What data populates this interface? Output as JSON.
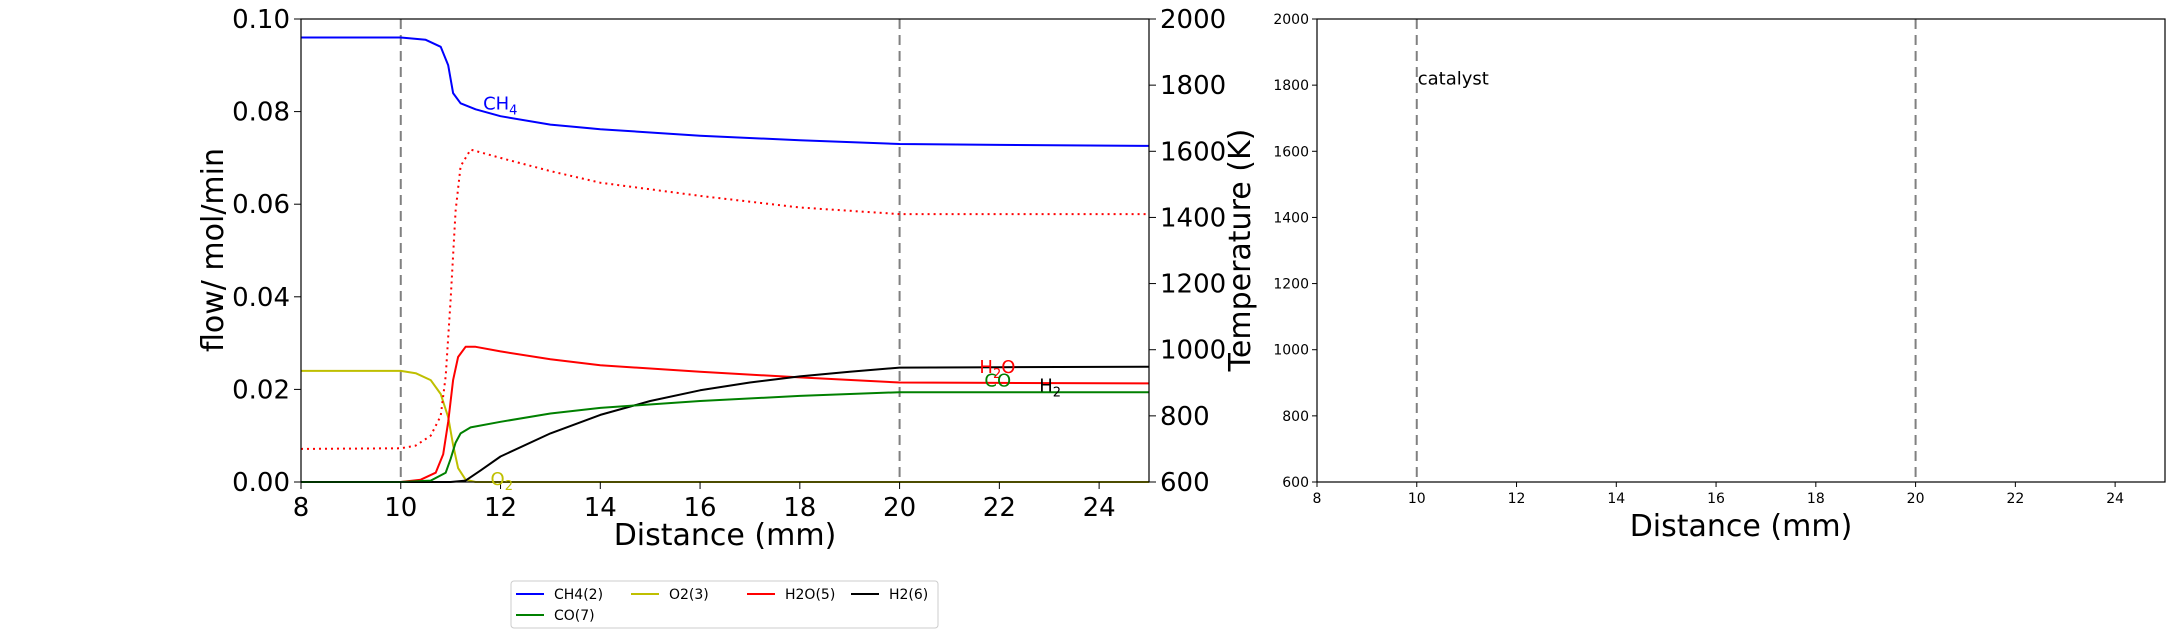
{
  "chart_data": [
    {
      "type": "line",
      "xlabel": "Distance (mm)",
      "ylabel": "flow/ mol/min",
      "y2label": "Temperature (K)",
      "xlim": [
        8,
        25
      ],
      "ylim": [
        0,
        0.1
      ],
      "y2lim": [
        600,
        2000
      ],
      "xticks": [
        "8",
        "10",
        "12",
        "14",
        "16",
        "18",
        "20",
        "22",
        "24"
      ],
      "yticks": [
        "0.00",
        "0.02",
        "0.04",
        "0.06",
        "0.08",
        "0.10"
      ],
      "y2ticks": [
        "600",
        "800",
        "1000",
        "1200",
        "1400",
        "1600",
        "1800",
        "2000"
      ],
      "vlines": [
        10,
        20
      ],
      "grid": false,
      "legend_placement": "bottom-center",
      "series": [
        {
          "name": "CH4(2)",
          "color": "#0000ff",
          "label": "CH4",
          "label_at": [
            11.65,
            0.0805
          ],
          "x": [
            8,
            10,
            10.5,
            10.8,
            10.95,
            11.05,
            11.2,
            11.5,
            12,
            13,
            14,
            16,
            18,
            20,
            22,
            25
          ],
          "y": [
            0.096,
            0.096,
            0.0955,
            0.094,
            0.09,
            0.084,
            0.0818,
            0.0805,
            0.079,
            0.0772,
            0.0762,
            0.0748,
            0.0738,
            0.073,
            0.0728,
            0.0726
          ]
        },
        {
          "name": "O2(3)",
          "color": "#bfbf00",
          "label": "O2",
          "label_at": [
            11.8,
            -0.0006
          ],
          "x": [
            8,
            10,
            10.3,
            10.6,
            10.8,
            10.95,
            11.05,
            11.15,
            11.3,
            11.5,
            12,
            25
          ],
          "y": [
            0.024,
            0.024,
            0.0235,
            0.022,
            0.019,
            0.014,
            0.008,
            0.003,
            0.0005,
            0,
            0,
            0
          ]
        },
        {
          "name": "H2O(5)",
          "color": "#ff0000",
          "label": "H2O",
          "label_at": [
            21.6,
            0.0235
          ],
          "x": [
            8,
            10,
            10.4,
            10.7,
            10.85,
            10.95,
            11.05,
            11.15,
            11.3,
            11.5,
            12,
            13,
            14,
            16,
            18,
            20,
            22,
            25
          ],
          "y": [
            0,
            0,
            0.0005,
            0.002,
            0.006,
            0.013,
            0.022,
            0.027,
            0.0292,
            0.0292,
            0.0282,
            0.0265,
            0.0252,
            0.0238,
            0.0226,
            0.0215,
            0.0214,
            0.0213
          ]
        },
        {
          "name": "H2(6)",
          "color": "#000000",
          "label": "H2",
          "label_at": [
            22.8,
            0.0195
          ],
          "x": [
            8,
            10,
            11,
            11.3,
            11.6,
            12,
            13,
            14,
            15,
            16,
            17,
            18,
            19,
            20,
            22,
            25
          ],
          "y": [
            0,
            0,
            0,
            0.0003,
            0.0025,
            0.0055,
            0.0105,
            0.0145,
            0.0175,
            0.0198,
            0.0215,
            0.0228,
            0.0238,
            0.0247,
            0.0248,
            0.0249
          ]
        },
        {
          "name": "CO(7)",
          "color": "#008000",
          "label": "CO",
          "label_at": [
            21.7,
            0.0206
          ],
          "x": [
            8,
            10,
            10.6,
            10.9,
            11.0,
            11.1,
            11.2,
            11.4,
            12,
            13,
            14,
            16,
            18,
            20,
            22,
            25
          ],
          "y": [
            0,
            0,
            0.0003,
            0.002,
            0.005,
            0.0085,
            0.0105,
            0.0118,
            0.013,
            0.0148,
            0.016,
            0.0175,
            0.0186,
            0.0194,
            0.0194,
            0.0194
          ]
        },
        {
          "name": "",
          "axis": "y2",
          "color": "#ff0000",
          "dash": true,
          "x": [
            8,
            10,
            10.3,
            10.6,
            10.8,
            10.9,
            11.0,
            11.1,
            11.2,
            11.4,
            12,
            13,
            14,
            16,
            18,
            20,
            22,
            25
          ],
          "y": [
            700,
            702,
            710,
            740,
            800,
            920,
            1150,
            1420,
            1555,
            1605,
            1580,
            1540,
            1505,
            1465,
            1430,
            1410,
            1410,
            1410
          ]
        }
      ]
    },
    {
      "type": "line",
      "xlabel": "Distance (mm)",
      "xlim": [
        8,
        25
      ],
      "ylim": [
        600,
        2000
      ],
      "xticks": [
        "8",
        "10",
        "12",
        "14",
        "16",
        "18",
        "20",
        "22",
        "24"
      ],
      "yticks": [
        "600",
        "800",
        "1000",
        "1200",
        "1400",
        "1600",
        "1800",
        "2000"
      ],
      "vlines": [
        10,
        20
      ],
      "annotation": {
        "text": "catalyst",
        "x": 10,
        "y": 1820
      },
      "series": []
    }
  ]
}
